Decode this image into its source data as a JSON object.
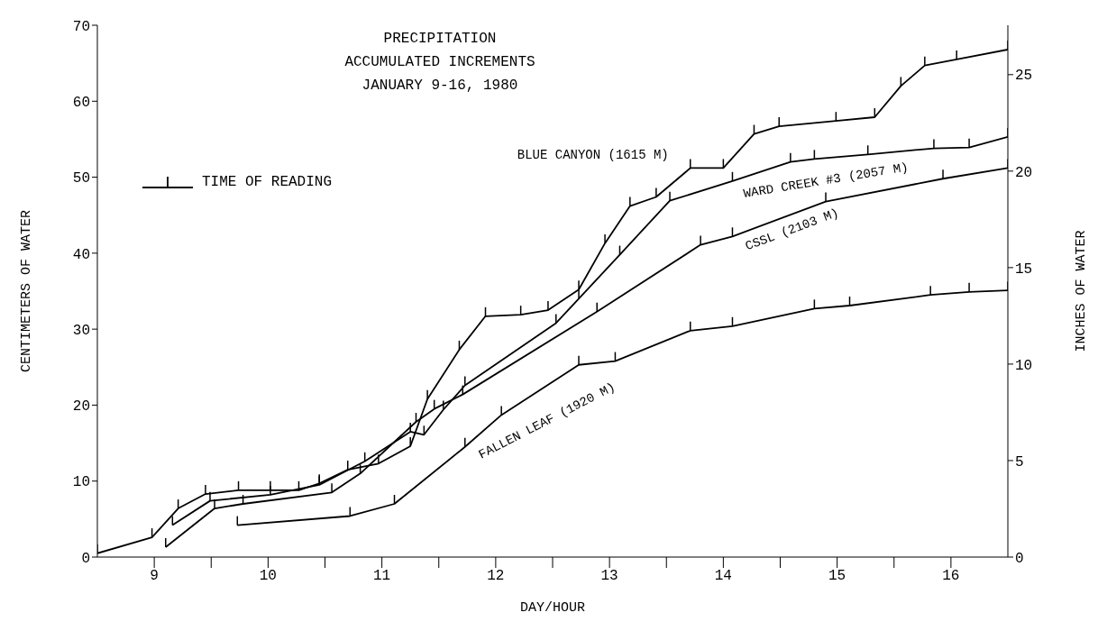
{
  "chart_data": {
    "type": "line",
    "title": "PRECIPITATION",
    "subtitle": "ACCUMULATED INCREMENTS",
    "xlabel": "DAY/HOUR",
    "ylabel": "CENTIMETERS OF WATER",
    "y2label": "INCHES OF WATER",
    "annotations": [
      "JANUARY 9-16, 1980",
      "TIME OF READING"
    ],
    "xlim": [
      9,
      17
    ],
    "xticks": [
      {
        "value": 9.5,
        "label": "9"
      },
      {
        "value": 10,
        "label": null
      },
      {
        "value": 10.5,
        "label": "10"
      },
      {
        "value": 11,
        "label": null
      },
      {
        "value": 11.5,
        "label": "11"
      },
      {
        "value": 12,
        "label": null
      },
      {
        "value": 12.5,
        "label": "12"
      },
      {
        "value": 13,
        "label": null
      },
      {
        "value": 13.5,
        "label": "13"
      },
      {
        "value": 14,
        "label": null
      },
      {
        "value": 14.5,
        "label": "14"
      },
      {
        "value": 15,
        "label": null
      },
      {
        "value": 15.5,
        "label": "15"
      },
      {
        "value": 16,
        "label": null
      },
      {
        "value": 16.5,
        "label": "16"
      }
    ],
    "ylim": [
      0,
      70
    ],
    "yticks": [
      0,
      10,
      20,
      30,
      40,
      50,
      60,
      70
    ],
    "y2lim": [
      0,
      27.56
    ],
    "y2ticks": [
      0,
      5,
      10,
      15,
      20,
      25
    ],
    "line_style": "solid",
    "legend": "bottom right",
    "series": [
      {
        "name": "BLUE CANYON (1615 M)",
        "color": "#000000",
        "x": [
          9.0,
          9.48,
          9.71,
          9.95,
          10.24,
          10.52,
          10.77,
          10.95,
          11.2,
          11.47,
          11.75,
          11.9,
          12.18,
          12.41,
          12.72,
          12.96,
          13.23,
          13.46,
          13.68,
          13.91,
          14.21,
          14.5,
          14.77,
          14.99,
          15.49,
          15.83,
          16.06,
          16.27,
          16.55,
          17.0
        ],
        "values": [
          0.5,
          2.6,
          6.4,
          8.3,
          8.8,
          8.8,
          8.8,
          9.7,
          11.5,
          12.3,
          14.6,
          20.8,
          27.3,
          31.7,
          31.9,
          32.5,
          35.2,
          41.3,
          46.2,
          47.4,
          51.2,
          51.2,
          55.7,
          56.7,
          57.4,
          57.9,
          62.0,
          64.7,
          65.5,
          66.8
        ]
      },
      {
        "name": "WARD CREEK #3 (2057 M)",
        "color": "#000000",
        "x": [
          9.66,
          9.99,
          10.52,
          10.95,
          11.35,
          11.75,
          11.87,
          12.04,
          12.23,
          13.03,
          13.23,
          13.59,
          14.03,
          14.58,
          15.09,
          15.3,
          15.77,
          16.35,
          16.66,
          17.0
        ],
        "values": [
          4.2,
          7.4,
          8.2,
          9.5,
          12.6,
          16.5,
          16.1,
          19.4,
          22.6,
          30.8,
          34.0,
          39.8,
          46.9,
          49.5,
          52.0,
          52.4,
          53.0,
          53.8,
          53.9,
          55.3
        ]
      },
      {
        "name": "CSSL (2103 M)",
        "color": "#000000",
        "x": [
          9.6,
          10.03,
          10.28,
          11.06,
          11.31,
          11.8,
          11.96,
          12.21,
          13.39,
          14.3,
          14.58,
          15.4,
          16.43,
          17.0
        ],
        "values": [
          1.3,
          6.4,
          7.0,
          8.5,
          11.0,
          17.8,
          19.5,
          21.4,
          32.3,
          41.1,
          42.2,
          46.8,
          49.8,
          51.2
        ]
      },
      {
        "name": "FALLEN LEAF (1920 M)",
        "color": "#000000",
        "x": [
          10.23,
          11.22,
          11.61,
          12.23,
          12.55,
          13.23,
          13.55,
          14.21,
          14.58,
          15.3,
          15.61,
          16.32,
          16.66,
          17.0
        ],
        "values": [
          4.2,
          5.4,
          7.0,
          14.5,
          18.7,
          25.3,
          25.8,
          29.8,
          30.4,
          32.7,
          33.1,
          34.5,
          34.9,
          35.1
        ]
      }
    ]
  }
}
